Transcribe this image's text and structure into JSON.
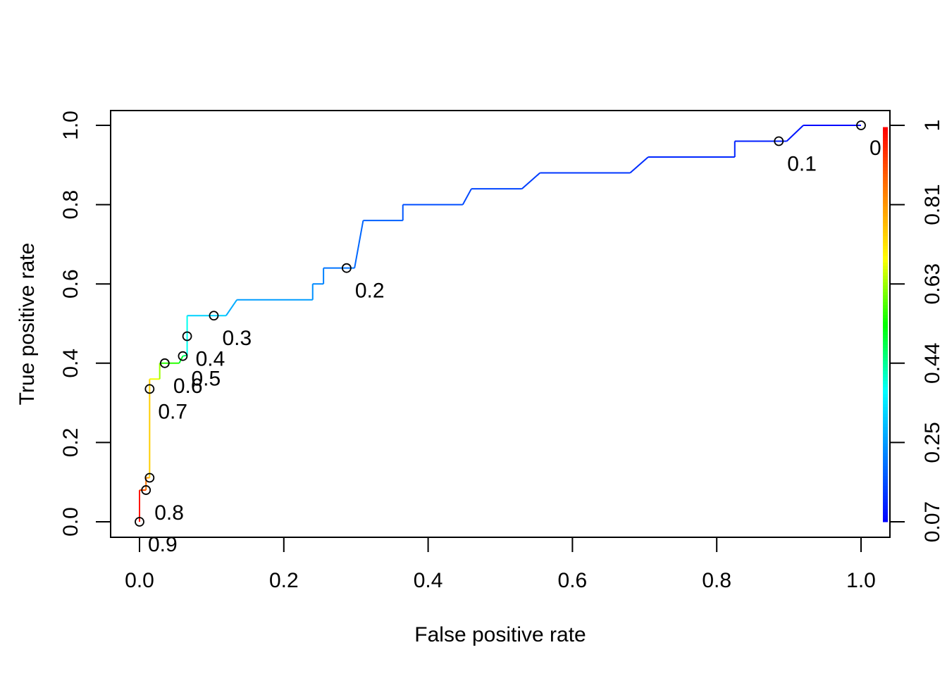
{
  "chart_data": {
    "type": "line",
    "xlabel": "False positive rate",
    "ylabel": "True positive rate",
    "xlim": [
      0,
      1
    ],
    "ylim": [
      0,
      1
    ],
    "grid": false,
    "x_ticks": [
      "0.0",
      "0.2",
      "0.4",
      "0.6",
      "0.8",
      "1.0"
    ],
    "y_ticks": [
      "0.0",
      "0.2",
      "0.4",
      "0.6",
      "0.8",
      "1.0"
    ],
    "colorize": true,
    "colorbar": {
      "placement": "right",
      "tick_labels": [
        "0.07",
        "0.25",
        "0.44",
        "0.63",
        "0.81",
        "1"
      ],
      "range": [
        0.07,
        1
      ],
      "colors": [
        "#0000FF",
        "#0080FF",
        "#00FFFF",
        "#00FF00",
        "#FFFF00",
        "#FF8000",
        "#FF0000"
      ]
    },
    "roc_curve": [
      {
        "fpr": 0.0,
        "tpr": 0.0,
        "cutoff": 1.0
      },
      {
        "fpr": 0.0,
        "tpr": 0.08,
        "cutoff": 0.95
      },
      {
        "fpr": 0.009,
        "tpr": 0.08,
        "cutoff": 0.88
      },
      {
        "fpr": 0.009,
        "tpr": 0.111,
        "cutoff": 0.84
      },
      {
        "fpr": 0.014,
        "tpr": 0.111,
        "cutoff": 0.8
      },
      {
        "fpr": 0.014,
        "tpr": 0.36,
        "cutoff": 0.7
      },
      {
        "fpr": 0.028,
        "tpr": 0.36,
        "cutoff": 0.66
      },
      {
        "fpr": 0.028,
        "tpr": 0.4,
        "cutoff": 0.6
      },
      {
        "fpr": 0.055,
        "tpr": 0.4,
        "cutoff": 0.52
      },
      {
        "fpr": 0.06,
        "tpr": 0.418,
        "cutoff": 0.5
      },
      {
        "fpr": 0.066,
        "tpr": 0.42,
        "cutoff": 0.42
      },
      {
        "fpr": 0.066,
        "tpr": 0.52,
        "cutoff": 0.36
      },
      {
        "fpr": 0.12,
        "tpr": 0.52,
        "cutoff": 0.29
      },
      {
        "fpr": 0.135,
        "tpr": 0.56,
        "cutoff": 0.27
      },
      {
        "fpr": 0.24,
        "tpr": 0.56,
        "cutoff": 0.25
      },
      {
        "fpr": 0.24,
        "tpr": 0.6,
        "cutoff": 0.24
      },
      {
        "fpr": 0.255,
        "tpr": 0.6,
        "cutoff": 0.23
      },
      {
        "fpr": 0.255,
        "tpr": 0.64,
        "cutoff": 0.22
      },
      {
        "fpr": 0.298,
        "tpr": 0.64,
        "cutoff": 0.2
      },
      {
        "fpr": 0.31,
        "tpr": 0.76,
        "cutoff": 0.19
      },
      {
        "fpr": 0.365,
        "tpr": 0.76,
        "cutoff": 0.18
      },
      {
        "fpr": 0.365,
        "tpr": 0.8,
        "cutoff": 0.17
      },
      {
        "fpr": 0.448,
        "tpr": 0.8,
        "cutoff": 0.16
      },
      {
        "fpr": 0.46,
        "tpr": 0.84,
        "cutoff": 0.155
      },
      {
        "fpr": 0.53,
        "tpr": 0.84,
        "cutoff": 0.15
      },
      {
        "fpr": 0.555,
        "tpr": 0.88,
        "cutoff": 0.14
      },
      {
        "fpr": 0.68,
        "tpr": 0.88,
        "cutoff": 0.13
      },
      {
        "fpr": 0.705,
        "tpr": 0.92,
        "cutoff": 0.12
      },
      {
        "fpr": 0.825,
        "tpr": 0.92,
        "cutoff": 0.115
      },
      {
        "fpr": 0.825,
        "tpr": 0.96,
        "cutoff": 0.11
      },
      {
        "fpr": 0.897,
        "tpr": 0.96,
        "cutoff": 0.1
      },
      {
        "fpr": 0.92,
        "tpr": 1.0,
        "cutoff": 0.09
      },
      {
        "fpr": 1.0,
        "tpr": 1.0,
        "cutoff": 0.07
      }
    ],
    "cutoff_points": [
      {
        "label": "0.9",
        "fpr": 0.0,
        "tpr": 0.0
      },
      {
        "label": "0.8",
        "fpr": 0.009,
        "tpr": 0.08
      },
      {
        "label": "",
        "fpr": 0.014,
        "tpr": 0.111
      },
      {
        "label": "0.7",
        "fpr": 0.014,
        "tpr": 0.335
      },
      {
        "label": "0.6",
        "fpr": 0.035,
        "tpr": 0.4
      },
      {
        "label": "0.5",
        "fpr": 0.06,
        "tpr": 0.418
      },
      {
        "label": "0.4",
        "fpr": 0.066,
        "tpr": 0.468
      },
      {
        "label": "0.3",
        "fpr": 0.103,
        "tpr": 0.52
      },
      {
        "label": "0.2",
        "fpr": 0.287,
        "tpr": 0.64
      },
      {
        "label": "0.1",
        "fpr": 0.886,
        "tpr": 0.96
      },
      {
        "label": "0",
        "fpr": 1.0,
        "tpr": 1.0
      }
    ]
  }
}
